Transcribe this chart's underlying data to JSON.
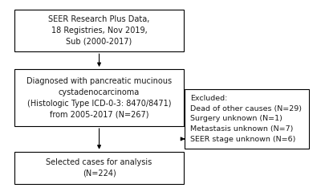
{
  "background_color": "#ffffff",
  "box1_text": "SEER Research Plus Data,\n18 Registries, Nov 2019,\nSub (2000-2017)",
  "box2_text": "Diagnosed with pancreatic mucinous\ncystadenocarcinoma\n(Histologic Type ICD-0-3: 8470/8471)\nfrom 2005-2017 (N=267)",
  "box3_text": "Selected cases for analysis\n(N=224)",
  "box4_text": "Excluded:\nDead of other causes (N=29)\nSurgery unknown (N=1)\nMetastasis unknown (N=7)\nSEER stage unknown (N=6)",
  "box_edge_color": "#000000",
  "text_color": "#1a1a1a",
  "arrow_color": "#000000",
  "fontsize_main": 7.0,
  "fontsize_excl": 6.8,
  "lw": 0.8
}
